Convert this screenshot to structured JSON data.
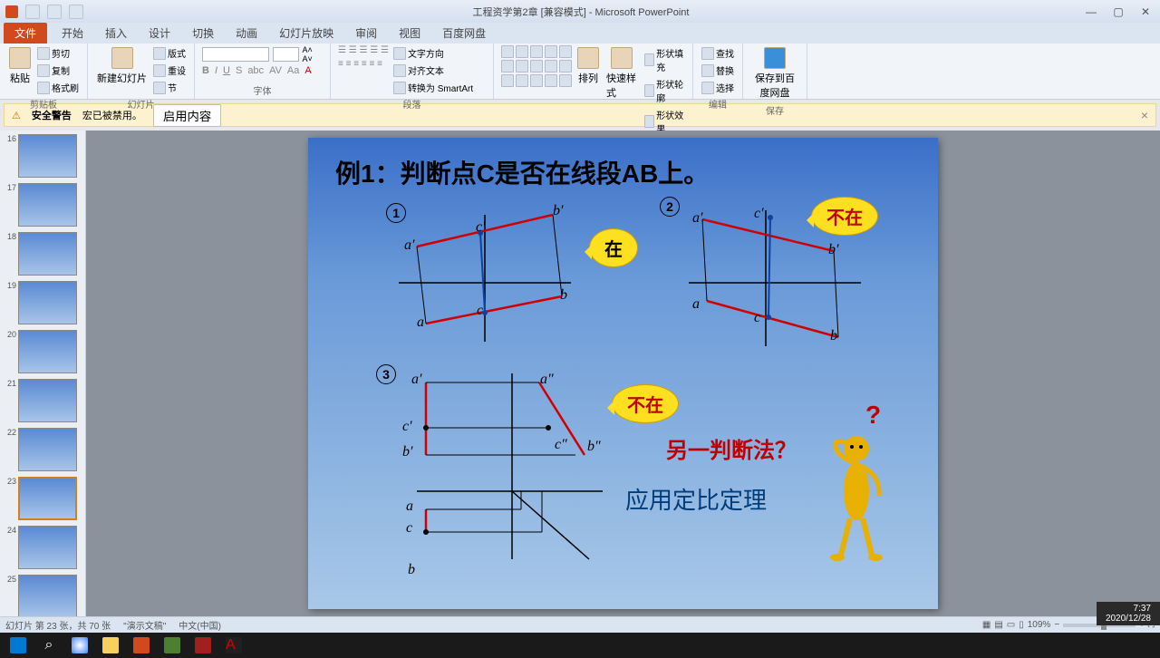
{
  "app": {
    "title": "工程资学第2章 [兼容模式] - Microsoft PowerPoint"
  },
  "tabs": {
    "file": "文件",
    "items": [
      "开始",
      "插入",
      "设计",
      "切换",
      "动画",
      "幻灯片放映",
      "审阅",
      "视图",
      "百度网盘"
    ]
  },
  "ribbon": {
    "groups": {
      "clipboard": {
        "label": "剪贴板",
        "paste": "粘贴",
        "cut": "剪切",
        "copy": "复制",
        "format": "格式刷"
      },
      "slides": {
        "label": "幻灯片",
        "new": "新建幻灯片",
        "layout": "版式",
        "reset": "重设",
        "section": "节"
      },
      "font": {
        "label": "字体",
        "name": "",
        "size": ""
      },
      "paragraph": {
        "label": "段落",
        "dir": "文字方向",
        "align": "对齐文本",
        "smart": "转换为 SmartArt"
      },
      "drawing": {
        "label": "绘图",
        "arrange": "排列",
        "quick": "快速样式",
        "fill": "形状填充",
        "outline": "形状轮廓",
        "effects": "形状效果"
      },
      "editing": {
        "label": "编辑",
        "find": "查找",
        "replace": "替换",
        "select": "选择"
      },
      "save": {
        "label": "保存",
        "btn": "保存到百度网盘"
      }
    }
  },
  "security": {
    "warn": "安全警告",
    "msg": "宏已被禁用。",
    "enable": "启用内容"
  },
  "thumbs": {
    "start": 16,
    "active": 23
  },
  "slide": {
    "title": "例1：判断点C是否在线段AB上。",
    "callout1": "在",
    "callout2": "不在",
    "callout3": "不在",
    "textq": "另一判断法？",
    "texta": "应用定比定理",
    "d1": {
      "ap": "a′",
      "bp": "b′",
      "cp": "c′",
      "a": "a",
      "b": "b",
      "c": "c"
    },
    "d2": {
      "ap": "a′",
      "bp": "b′",
      "cp": "c′",
      "a": "a",
      "b": "b",
      "c": "c"
    },
    "d3": {
      "ap": "a′",
      "app": "a″",
      "bp": "b′",
      "bpp": "b″",
      "cp": "c′",
      "cpp": "c″",
      "a": "a",
      "b": "b",
      "c": "c"
    }
  },
  "status": {
    "slide": "幻灯片 第 23 张，共 70 张",
    "theme": "\"演示文稿\"",
    "lang": "中文(中国)",
    "zoom": "109%",
    "date": "2020/12/28",
    "time": "7:37"
  }
}
